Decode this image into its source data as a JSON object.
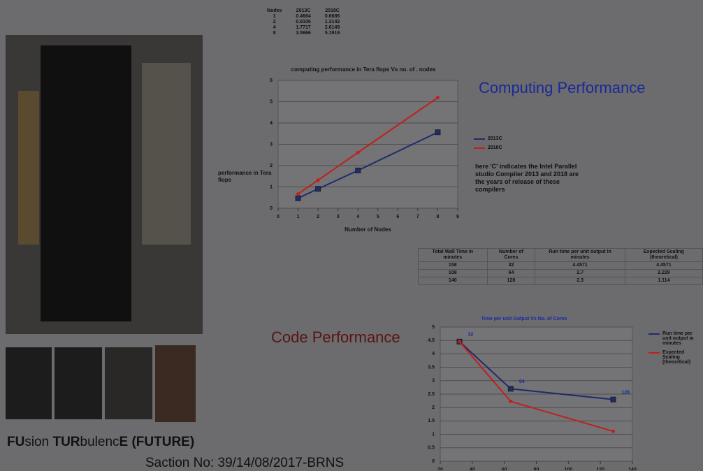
{
  "top_table": {
    "headers": [
      "Nodes",
      "2013C",
      "2018C"
    ],
    "rows": [
      [
        "1",
        "0.4684",
        "0.6686"
      ],
      [
        "2",
        "0.9106",
        "1.3142"
      ],
      [
        "4",
        "1.7717",
        "2.6149"
      ],
      [
        "8",
        "3.5666",
        "5.1919"
      ]
    ]
  },
  "chart1": {
    "type": "line",
    "title": "computing performance in Tera flops Vs no. of . nodes",
    "y_label": "performance in Tera flops",
    "x_label": "Number of Nodes",
    "x": [
      1,
      2,
      4,
      8
    ],
    "series": [
      {
        "name": "2013C",
        "color": "#1e2c6e",
        "marker": "square",
        "values": [
          0.4684,
          0.9106,
          1.7717,
          3.5666
        ]
      },
      {
        "name": "2018C",
        "color": "#c0201e",
        "marker": "circle",
        "values": [
          0.6686,
          1.3142,
          2.6149,
          5.1919
        ]
      }
    ],
    "xlim": [
      0,
      9
    ],
    "xticks": [
      0,
      1,
      2,
      3,
      4,
      5,
      6,
      7,
      8,
      9
    ],
    "ylim": [
      0,
      6
    ],
    "yticks": [
      0,
      1,
      2,
      3,
      4,
      5,
      6
    ],
    "grid": true
  },
  "computing_heading": "Computing Performance",
  "compiler_note": "here 'C' indicates the Intel Parallel studio Compiler 2013 and 2018 are the years of release of these compilers",
  "scaling_table": {
    "headers": [
      "Total Wall Time in minutes",
      "Number of Cores",
      "Run time per unit output in minutes",
      "Expected Scaling (theoretical)"
    ],
    "rows": [
      [
        "158",
        "32",
        "4.4571",
        "4.4571"
      ],
      [
        "108",
        "64",
        "2.7",
        "2.229"
      ],
      [
        "140",
        "128",
        "2.3",
        "1.114"
      ]
    ]
  },
  "code_heading": "Code Performance",
  "chart2": {
    "type": "line",
    "title": "Time per unit Output Vs No. of Cores",
    "x": [
      32,
      64,
      128
    ],
    "series": [
      {
        "name": "Run time per unit output in minutes",
        "color": "#1e2c6e",
        "marker": "square",
        "values": [
          4.4571,
          2.7,
          2.3
        ]
      },
      {
        "name": "Expected Scaling (theoretical)",
        "color": "#c0201e",
        "marker": "circle",
        "values": [
          4.4571,
          2.229,
          1.114
        ]
      }
    ],
    "xlim": [
      20,
      140
    ],
    "xticks": [
      20,
      40,
      60,
      80,
      100,
      120,
      140
    ],
    "ylim": [
      0,
      5
    ],
    "yticks": [
      0,
      0.5,
      1,
      1.5,
      2,
      2.5,
      3,
      3.5,
      4,
      4.5,
      5
    ],
    "grid": true,
    "data_labels": true
  },
  "project_title": [
    "FU",
    "sion ",
    "TUR",
    "bulenc",
    "E (FUTURE)"
  ],
  "sanction": "Saction No: 39/14/08/2017-BRNS"
}
